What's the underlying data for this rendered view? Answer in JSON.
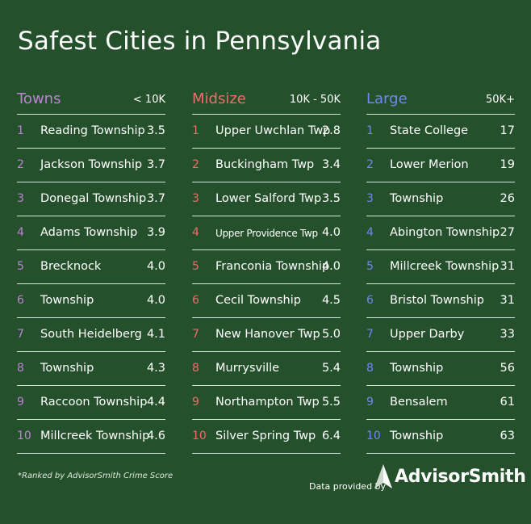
{
  "title": "Safest Cities in Pennsylvania",
  "colors": {
    "background": "#24512b",
    "towns_accent": "#c07fd8",
    "midsize_accent": "#f06b6b",
    "large_accent": "#6f88f4"
  },
  "columns": [
    {
      "title": "Towns",
      "range": "< 10K",
      "rows": [
        {
          "rank": "1",
          "city": "Reading Township",
          "score": "3.5"
        },
        {
          "rank": "2",
          "city": "Jackson Township",
          "score": "3.7"
        },
        {
          "rank": "3",
          "city": "Donegal Township",
          "score": "3.7"
        },
        {
          "rank": "4",
          "city": "Adams Township",
          "score": "3.9"
        },
        {
          "rank": "5",
          "city": "Brecknock",
          "score": "4.0"
        },
        {
          "rank": "6",
          "city": "Township",
          "score": "4.0"
        },
        {
          "rank": "7",
          "city": "South Heidelberg",
          "score": "4.1"
        },
        {
          "rank": "8",
          "city": "Township",
          "score": "4.3"
        },
        {
          "rank": "9",
          "city": "Raccoon Township",
          "score": "4.4"
        },
        {
          "rank": "10",
          "city": "Millcreek Township",
          "score": "4.6"
        }
      ]
    },
    {
      "title": "Midsize",
      "range": "10K - 50K",
      "rows": [
        {
          "rank": "1",
          "city": "Upper Uwchlan Twp",
          "score": "2.8"
        },
        {
          "rank": "2",
          "city": "Buckingham Twp",
          "score": "3.4"
        },
        {
          "rank": "3",
          "city": "Lower Salford Twp",
          "score": "3.5"
        },
        {
          "rank": "4",
          "city": "Upper Providence Twp",
          "score": "4.0"
        },
        {
          "rank": "5",
          "city": "Franconia Township",
          "score": "4.0"
        },
        {
          "rank": "6",
          "city": "Cecil Township",
          "score": "4.5"
        },
        {
          "rank": "7",
          "city": "New Hanover Twp",
          "score": "5.0"
        },
        {
          "rank": "8",
          "city": "Murrysville",
          "score": "5.4"
        },
        {
          "rank": "9",
          "city": "Northampton Twp",
          "score": "5.5"
        },
        {
          "rank": "10",
          "city": "Silver Spring Twp",
          "score": "6.4"
        }
      ]
    },
    {
      "title": "Large",
      "range": "50K+",
      "rows": [
        {
          "rank": "1",
          "city": "State College",
          "score": "17"
        },
        {
          "rank": "2",
          "city": "Lower Merion",
          "score": "19"
        },
        {
          "rank": "3",
          "city": "Township",
          "score": "26"
        },
        {
          "rank": "4",
          "city": "Abington Township",
          "score": "27"
        },
        {
          "rank": "5",
          "city": "Millcreek Township",
          "score": "31"
        },
        {
          "rank": "6",
          "city": "Bristol Township",
          "score": "31"
        },
        {
          "rank": "7",
          "city": "Upper Darby",
          "score": "33"
        },
        {
          "rank": "8",
          "city": "Township",
          "score": "56"
        },
        {
          "rank": "9",
          "city": "Bensalem",
          "score": "61"
        },
        {
          "rank": "10",
          "city": "Township",
          "score": "63"
        }
      ]
    }
  ],
  "footnote": "*Ranked by AdvisorSmith Crime Score",
  "provided_by": "Data provided by",
  "brand": "AdvisorSmith"
}
